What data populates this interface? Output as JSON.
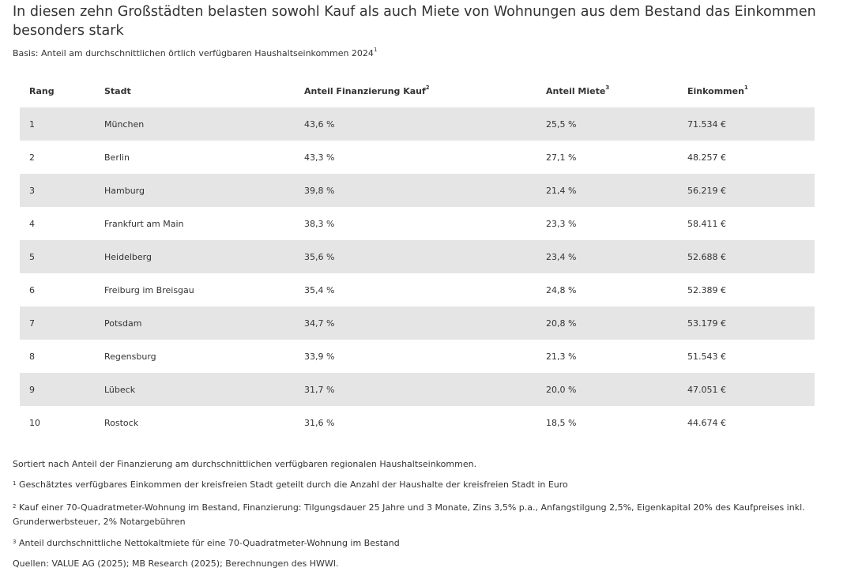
{
  "title": "In diesen zehn Großstädten belasten sowohl Kauf als auch Miete von Wohnungen aus dem Bestand das Einkommen besonders stark",
  "subtitle": {
    "text": "Basis: Anteil am durchschnittlichen örtlich verfügbaren Haushaltseinkommen 2024",
    "sup": "1"
  },
  "table": {
    "headers": [
      {
        "label": "Rang",
        "sup": ""
      },
      {
        "label": "Stadt",
        "sup": ""
      },
      {
        "label": "Anteil Finanzierung Kauf",
        "sup": "2"
      },
      {
        "label": "Anteil Miete",
        "sup": "3"
      },
      {
        "label": "Einkommen",
        "sup": "1"
      }
    ],
    "rows": [
      [
        "1",
        "München",
        "43,6 %",
        "25,5 %",
        "71.534 €"
      ],
      [
        "2",
        "Berlin",
        "43,3 %",
        "27,1 %",
        "48.257 €"
      ],
      [
        "3",
        "Hamburg",
        "39,8 %",
        "21,4 %",
        "56.219 €"
      ],
      [
        "4",
        "Frankfurt am Main",
        "38,3 %",
        "23,3 %",
        "58.411 €"
      ],
      [
        "5",
        "Heidelberg",
        "35,6 %",
        "23,4 %",
        "52.688 €"
      ],
      [
        "6",
        "Freiburg im Breisgau",
        "35,4 %",
        "24,8 %",
        "52.389 €"
      ],
      [
        "7",
        "Potsdam",
        "34,7 %",
        "20,8 %",
        "53.179 €"
      ],
      [
        "8",
        "Regensburg",
        "33,9 %",
        "21,3 %",
        "51.543 €"
      ],
      [
        "9",
        "Lübeck",
        "31,7 %",
        "20,0 %",
        "47.051 €"
      ],
      [
        "10",
        "Rostock",
        "31,6 %",
        "18,5 %",
        "44.674 €"
      ]
    ],
    "stripe_color": "#e5e5e5"
  },
  "notes": {
    "sort": "Sortiert nach Anteil der Finanzierung am durchschnittlichen verfügbaren regionalen Haushaltseinkommen.",
    "n1": {
      "sup": "1",
      "text": "Geschätztes verfügbares Einkommen der kreisfreien Stadt geteilt durch die Anzahl der Haushalte der kreisfreien Stadt in Euro"
    },
    "n2": {
      "sup": "2",
      "text": "Kauf einer 70-Quadratmeter-Wohnung im Bestand, Finanzierung: Tilgungsdauer 25 Jahre und 3 Monate, Zins 3,5% p.a., Anfangstilgung 2,5%, Eigenkapital 20% des Kaufpreises inkl. Grunderwerbsteuer, 2% Notargebühren"
    },
    "n3": {
      "sup": "3",
      "text": "Anteil durchschnittliche Nettokaltmiete für eine 70-Quadratmeter-Wohnung im Bestand"
    },
    "sources": "Quellen: VALUE AG (2025); MB Research (2025); Berechnungen des HWWI."
  }
}
